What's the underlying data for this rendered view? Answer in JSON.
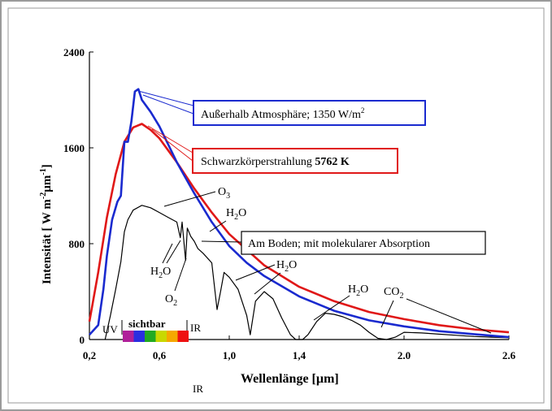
{
  "chart_data": {
    "type": "line",
    "xlabel": "Wellenlänge [µm]",
    "ylabel_main": "Intensität  [  W m",
    "ylabel_sup1": "-2",
    "ylabel_mid": "µm",
    "ylabel_sup2": "-1",
    "ylabel_end": "]",
    "xlim": [
      0.2,
      2.6
    ],
    "ylim": [
      0,
      2400
    ],
    "x_tick_labels": [
      "0,2",
      "0,6",
      "1,0",
      "1,4",
      "2.0",
      "2.6"
    ],
    "x_tick_values": [
      0.2,
      0.6,
      1.0,
      1.4,
      2.0,
      2.6
    ],
    "y_tick_labels": [
      "0",
      "800",
      "1600",
      "2400"
    ],
    "y_tick_values": [
      0,
      800,
      1600,
      2400
    ],
    "band_labels": {
      "uv": "UV",
      "visible": "sichtbar",
      "ir_inline": "IR",
      "ir_below": "IR"
    },
    "visible_spectrum_colors": [
      "#b0209a",
      "#2a2fe0",
      "#22aa22",
      "#c8d800",
      "#f5a800",
      "#ee1111"
    ],
    "series": [
      {
        "name": "Außerhalb Atmosphäre; 1350 W/m²",
        "color": "#1a2acf",
        "x": [
          0.2,
          0.25,
          0.28,
          0.3,
          0.33,
          0.36,
          0.38,
          0.4,
          0.42,
          0.44,
          0.46,
          0.48,
          0.5,
          0.55,
          0.6,
          0.7,
          0.8,
          0.9,
          1.0,
          1.1,
          1.2,
          1.4,
          1.6,
          1.8,
          2.0,
          2.2,
          2.4,
          2.6
        ],
        "y": [
          40,
          120,
          420,
          700,
          1000,
          1150,
          1200,
          1650,
          1650,
          1820,
          2070,
          2090,
          2000,
          1900,
          1780,
          1480,
          1220,
          980,
          780,
          640,
          530,
          360,
          240,
          160,
          110,
          70,
          45,
          20
        ]
      },
      {
        "name": "Schwarzkörperstrahlung",
        "label_value": "5762",
        "label_unit": "K",
        "color": "#e01818",
        "x": [
          0.2,
          0.25,
          0.3,
          0.35,
          0.4,
          0.45,
          0.5,
          0.55,
          0.6,
          0.7,
          0.8,
          0.9,
          1.0,
          1.2,
          1.4,
          1.6,
          1.8,
          2.0,
          2.2,
          2.4,
          2.6
        ],
        "y": [
          150,
          560,
          1020,
          1380,
          1650,
          1770,
          1800,
          1750,
          1680,
          1480,
          1260,
          1060,
          880,
          620,
          440,
          320,
          230,
          170,
          120,
          85,
          60
        ]
      },
      {
        "name": "Am Boden; mit molekularer Absorption",
        "color": "#000000",
        "x": [
          0.29,
          0.32,
          0.35,
          0.38,
          0.4,
          0.42,
          0.45,
          0.5,
          0.55,
          0.6,
          0.65,
          0.7,
          0.72,
          0.73,
          0.75,
          0.76,
          0.78,
          0.8,
          0.82,
          0.85,
          0.9,
          0.93,
          0.95,
          0.97,
          1.0,
          1.05,
          1.1,
          1.12,
          1.15,
          1.2,
          1.25,
          1.3,
          1.35,
          1.38,
          1.42,
          1.45,
          1.5,
          1.55,
          1.6,
          1.65,
          1.7,
          1.75,
          1.8,
          1.85,
          1.9,
          1.95,
          2.0,
          2.1,
          2.2,
          2.3,
          2.4,
          2.5,
          2.6
        ],
        "y": [
          0,
          200,
          420,
          650,
          900,
          1000,
          1080,
          1120,
          1100,
          1060,
          1020,
          980,
          850,
          980,
          660,
          930,
          860,
          820,
          760,
          720,
          640,
          250,
          400,
          560,
          520,
          420,
          200,
          40,
          320,
          400,
          340,
          180,
          40,
          0,
          0,
          40,
          150,
          220,
          210,
          190,
          160,
          120,
          60,
          10,
          0,
          20,
          60,
          55,
          45,
          35,
          25,
          20,
          15
        ]
      }
    ],
    "annotations": [
      {
        "text": "O",
        "sub": "3"
      },
      {
        "text": "H",
        "sub": "2",
        "tail": "O"
      },
      {
        "text": "H",
        "sub": "2",
        "tail": "O"
      },
      {
        "text": "O",
        "sub": "2"
      },
      {
        "text": "H",
        "sub": "2",
        "tail": "O"
      },
      {
        "text": "H",
        "sub": "2",
        "tail": "O"
      },
      {
        "text": "CO",
        "sub": "2"
      }
    ],
    "legend_boxes": [
      {
        "text": "Außerhalb Atmosphäre; 1350 W/m",
        "sup": "2",
        "border": "#1a2acf"
      },
      {
        "text": "Schwarzkörperstrahlung  ",
        "bold_tail": "5762  K",
        "border": "#e01818"
      },
      {
        "text": "Am Boden; mit molekularer Absorption",
        "border": "#000000"
      }
    ]
  }
}
